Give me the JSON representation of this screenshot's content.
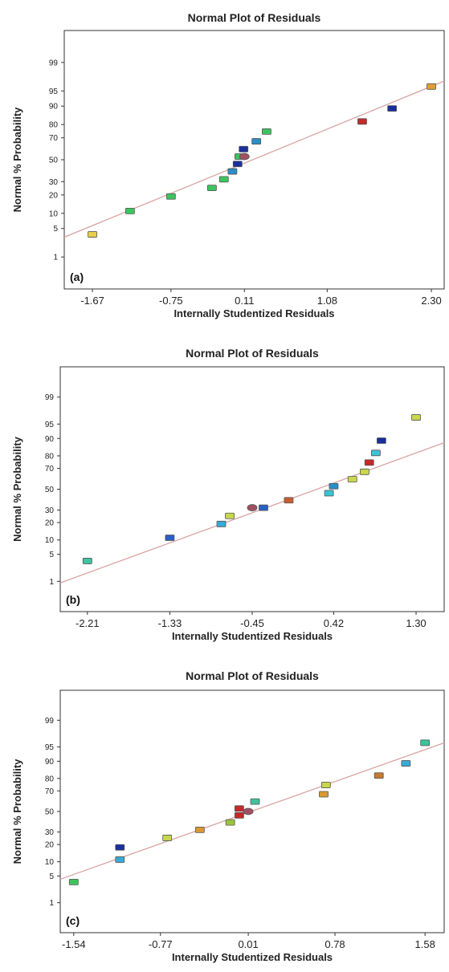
{
  "colors": {
    "fit_line": "#d9a3a3",
    "frame": "#333333",
    "marker_outline": "#555555"
  },
  "chart_data": [
    {
      "type": "scatter",
      "panel_label": "(a)",
      "title": "Normal Plot of Residuals",
      "xlabel": "Internally Studentized Residuals",
      "ylabel": "Normal % Probability",
      "xlim": [
        -2.0,
        2.45
      ],
      "x_ticks": [
        -1.67,
        -0.75,
        0.11,
        1.08,
        2.3
      ],
      "x_tick_labels": [
        "-1.67",
        "-0.75",
        "0.11",
        "1.08",
        "2.30"
      ],
      "y_ticks": [
        1,
        5,
        10,
        20,
        30,
        50,
        70,
        80,
        90,
        95,
        99
      ],
      "y_tick_labels": [
        "1",
        "5",
        "10",
        "20",
        "30",
        "50",
        "70",
        "80",
        "90",
        "95",
        "99"
      ],
      "y_scale": "normal-probability",
      "ylim": [
        0.1,
        99.9
      ],
      "fit_line": [
        [
          -2.0,
          3.2
        ],
        [
          2.45,
          97.0
        ]
      ],
      "grid": false,
      "points": [
        {
          "x": -1.67,
          "y": 3.7,
          "color": "#e8d04a",
          "shape": "square"
        },
        {
          "x": -1.23,
          "y": 11,
          "color": "#3ec45c",
          "shape": "square"
        },
        {
          "x": -0.75,
          "y": 19,
          "color": "#3ec45c",
          "shape": "square"
        },
        {
          "x": -0.27,
          "y": 25,
          "color": "#3ec45c",
          "shape": "square"
        },
        {
          "x": -0.13,
          "y": 32,
          "color": "#3ec45c",
          "shape": "square"
        },
        {
          "x": -0.03,
          "y": 39,
          "color": "#2a8fc7",
          "shape": "square"
        },
        {
          "x": 0.03,
          "y": 46,
          "color": "#1a2f9c",
          "shape": "square"
        },
        {
          "x": 0.05,
          "y": 53,
          "color": "#3ec45c",
          "shape": "square"
        },
        {
          "x": 0.11,
          "y": 53,
          "color": "#a05060",
          "shape": "circle"
        },
        {
          "x": 0.1,
          "y": 60,
          "color": "#1a2f9c",
          "shape": "square"
        },
        {
          "x": 0.25,
          "y": 67,
          "color": "#2a8fc7",
          "shape": "square"
        },
        {
          "x": 0.37,
          "y": 75,
          "color": "#3ec45c",
          "shape": "square"
        },
        {
          "x": 1.49,
          "y": 82,
          "color": "#c42a2a",
          "shape": "square"
        },
        {
          "x": 1.84,
          "y": 89,
          "color": "#1a2f9c",
          "shape": "square"
        },
        {
          "x": 2.3,
          "y": 96,
          "color": "#e0a030",
          "shape": "square"
        }
      ]
    },
    {
      "type": "scatter",
      "panel_label": "(b)",
      "title": "Normal Plot of Residuals",
      "xlabel": "Internally Studentized Residuals",
      "ylabel": "Normal % Probability",
      "xlim": [
        -2.5,
        1.6
      ],
      "x_ticks": [
        -2.21,
        -1.33,
        -0.45,
        0.42,
        1.3
      ],
      "x_tick_labels": [
        "-2.21",
        "-1.33",
        "-0.45",
        "0.42",
        "1.30"
      ],
      "y_ticks": [
        1,
        5,
        10,
        20,
        30,
        50,
        70,
        80,
        90,
        95,
        99
      ],
      "y_tick_labels": [
        "1",
        "5",
        "10",
        "20",
        "30",
        "50",
        "70",
        "80",
        "90",
        "95",
        "99"
      ],
      "y_scale": "normal-probability",
      "ylim": [
        0.1,
        99.9
      ],
      "fit_line": [
        [
          -2.5,
          0.9
        ],
        [
          1.6,
          88.0
        ]
      ],
      "grid": false,
      "points": [
        {
          "x": -2.21,
          "y": 3.5,
          "color": "#3ec4a0",
          "shape": "square"
        },
        {
          "x": -1.33,
          "y": 11,
          "color": "#2a5fc7",
          "shape": "square"
        },
        {
          "x": -0.78,
          "y": 19,
          "color": "#3aaad8",
          "shape": "square"
        },
        {
          "x": -0.69,
          "y": 25,
          "color": "#c9d84a",
          "shape": "square"
        },
        {
          "x": -0.45,
          "y": 32,
          "color": "#a05060",
          "shape": "circle"
        },
        {
          "x": -0.33,
          "y": 32,
          "color": "#2a5fc7",
          "shape": "square"
        },
        {
          "x": -0.06,
          "y": 39,
          "color": "#c46030",
          "shape": "square"
        },
        {
          "x": 0.37,
          "y": 46,
          "color": "#3ac4d8",
          "shape": "square"
        },
        {
          "x": 0.42,
          "y": 53,
          "color": "#2a8fc7",
          "shape": "square"
        },
        {
          "x": 0.62,
          "y": 60,
          "color": "#c9d84a",
          "shape": "square"
        },
        {
          "x": 0.75,
          "y": 67,
          "color": "#c9d84a",
          "shape": "square"
        },
        {
          "x": 0.8,
          "y": 75,
          "color": "#c42a2a",
          "shape": "square"
        },
        {
          "x": 0.87,
          "y": 82,
          "color": "#3ac4d8",
          "shape": "square"
        },
        {
          "x": 0.93,
          "y": 89,
          "color": "#1a2f9c",
          "shape": "square"
        },
        {
          "x": 1.3,
          "y": 96.5,
          "color": "#c9d84a",
          "shape": "square"
        }
      ]
    },
    {
      "type": "scatter",
      "panel_label": "(c)",
      "title": "Normal Plot of Residuals",
      "xlabel": "Internally Studentized Residuals",
      "ylabel": "Normal % Probability",
      "xlim": [
        -1.66,
        1.75
      ],
      "x_ticks": [
        -1.54,
        -0.77,
        0.01,
        0.78,
        1.58
      ],
      "x_tick_labels": [
        "-1.54",
        "-0.77",
        "0.01",
        "0.78",
        "1.58"
      ],
      "y_ticks": [
        1,
        5,
        10,
        20,
        30,
        50,
        70,
        80,
        90,
        95,
        99
      ],
      "y_tick_labels": [
        "1",
        "5",
        "10",
        "20",
        "30",
        "50",
        "70",
        "80",
        "90",
        "95",
        "99"
      ],
      "y_scale": "normal-probability",
      "ylim": [
        0.1,
        99.9
      ],
      "fit_line": [
        [
          -1.66,
          4.2
        ],
        [
          1.75,
          96.0
        ]
      ],
      "grid": false,
      "points": [
        {
          "x": -1.54,
          "y": 3.6,
          "color": "#3ec45c",
          "shape": "square"
        },
        {
          "x": -1.13,
          "y": 11,
          "color": "#3aaad8",
          "shape": "square"
        },
        {
          "x": -1.13,
          "y": 18,
          "color": "#1a2f9c",
          "shape": "square"
        },
        {
          "x": -0.71,
          "y": 25,
          "color": "#c9d84a",
          "shape": "square"
        },
        {
          "x": -0.42,
          "y": 32,
          "color": "#d89a30",
          "shape": "square"
        },
        {
          "x": -0.15,
          "y": 39,
          "color": "#9ac43e",
          "shape": "square"
        },
        {
          "x": -0.07,
          "y": 46,
          "color": "#c42a2a",
          "shape": "square"
        },
        {
          "x": 0.01,
          "y": 50,
          "color": "#a05060",
          "shape": "circle"
        },
        {
          "x": -0.07,
          "y": 53,
          "color": "#c42a2a",
          "shape": "square"
        },
        {
          "x": 0.07,
          "y": 60,
          "color": "#3ec49a",
          "shape": "square"
        },
        {
          "x": 0.68,
          "y": 67,
          "color": "#d89a30",
          "shape": "square"
        },
        {
          "x": 0.7,
          "y": 75,
          "color": "#c9d84a",
          "shape": "square"
        },
        {
          "x": 1.17,
          "y": 82,
          "color": "#c47a30",
          "shape": "square"
        },
        {
          "x": 1.41,
          "y": 89,
          "color": "#3aaad8",
          "shape": "square"
        },
        {
          "x": 1.58,
          "y": 96,
          "color": "#3ec49a",
          "shape": "square"
        }
      ]
    }
  ]
}
